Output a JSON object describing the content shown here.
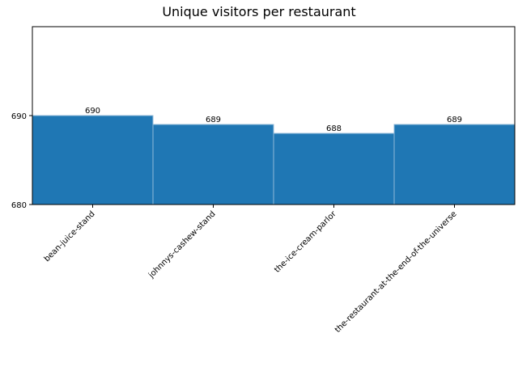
{
  "chart_data": {
    "type": "bar",
    "title": "Unique visitors per restaurant",
    "xlabel": "",
    "ylabel": "",
    "categories": [
      "bean-juice-stand",
      "johnnys-cashew-stand",
      "the-ice-cream-parlor",
      "the-restaurant-at-the-end-of-the-universe"
    ],
    "values": [
      690,
      689,
      688,
      689
    ],
    "data_labels": [
      "690",
      "689",
      "688",
      "689"
    ],
    "ylim": [
      680,
      700
    ],
    "yticks": [
      680,
      690
    ],
    "ytick_labels": [
      "680",
      "690"
    ],
    "bar_color": "#1f77b4",
    "bar_edge_color": "#8fb8d9",
    "grid": false,
    "legend": "none"
  }
}
